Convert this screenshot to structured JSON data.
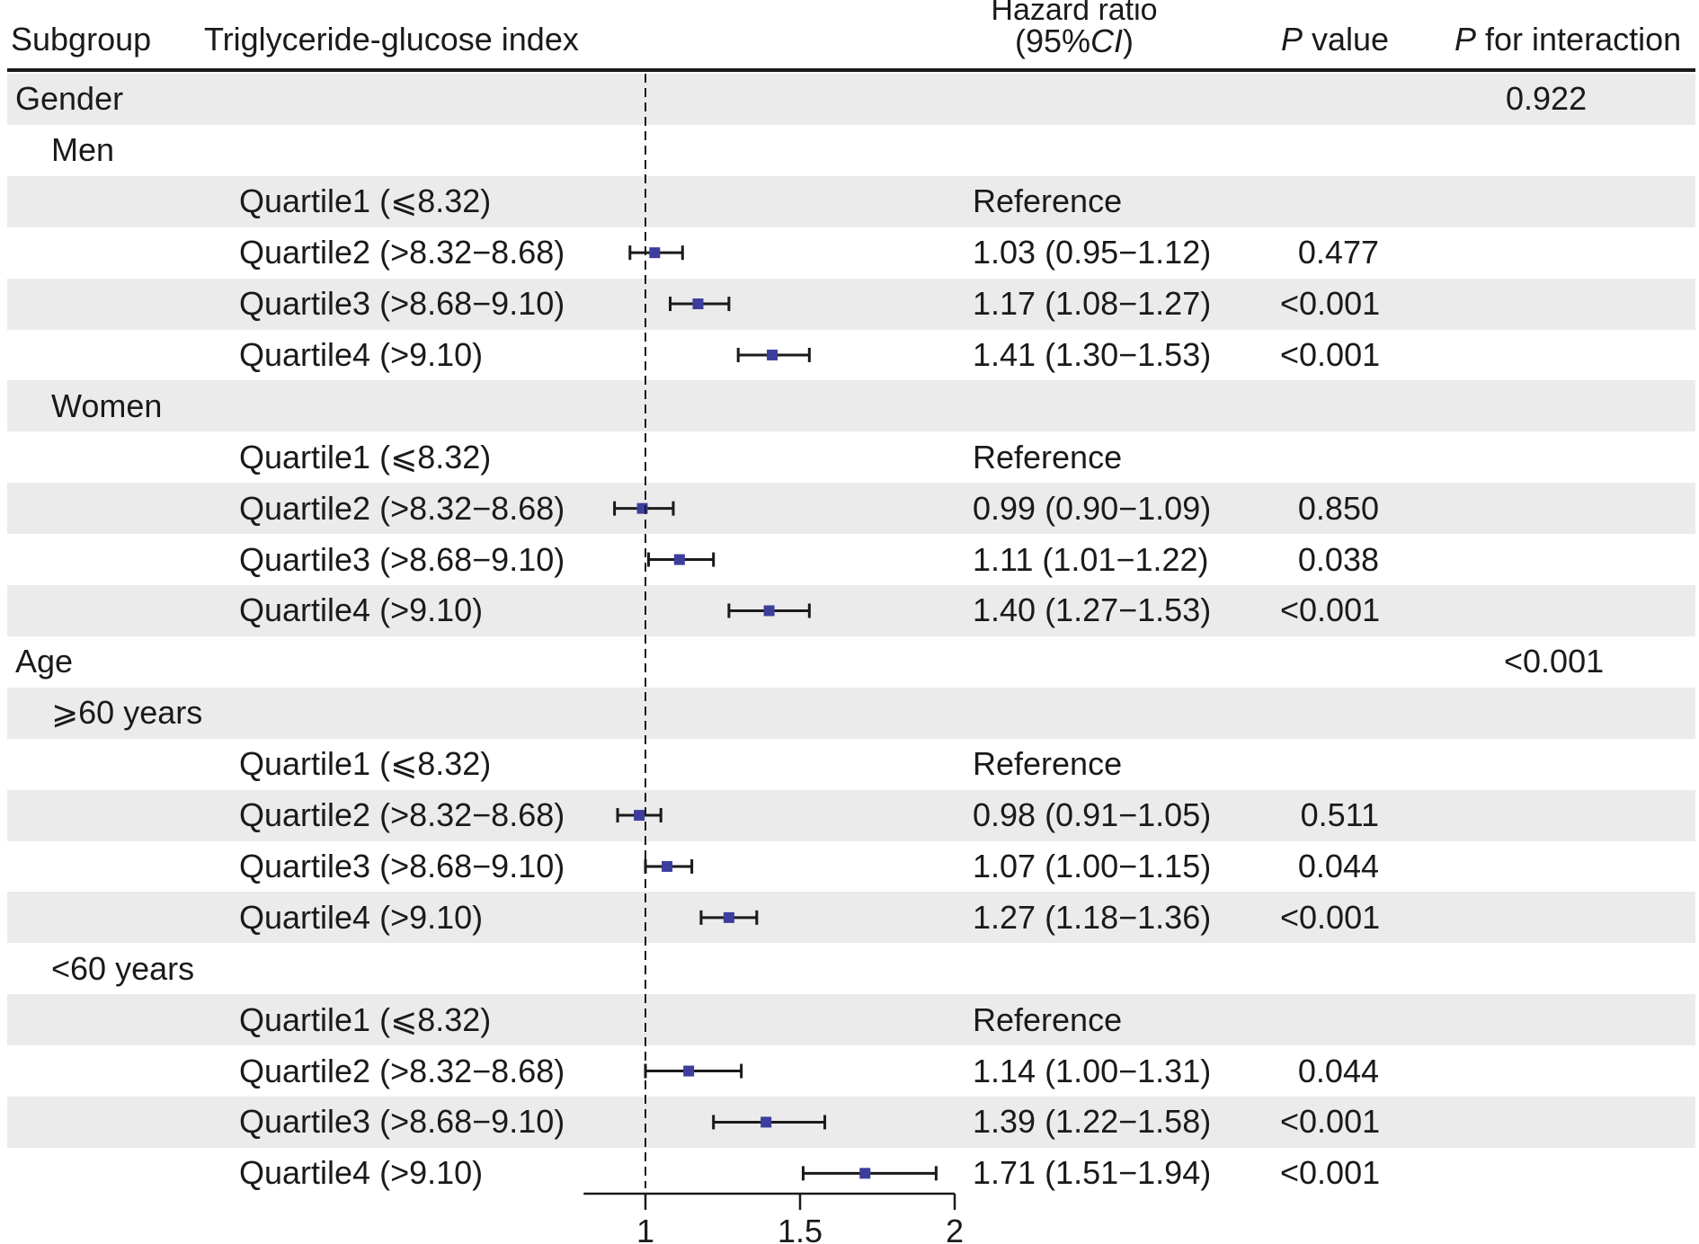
{
  "header": {
    "subgroup": "Subgroup",
    "tyg": "Triglyceride-glucose index",
    "hr_line1": "Hazard ratio",
    "hr_line2_pre": "(95%",
    "hr_line2_ci": "CI",
    "hr_line2_post": ")",
    "p_italic": "P",
    "p_rest": " value",
    "pint_italic": "P",
    "pint_rest": " for interaction"
  },
  "colors": {
    "marker": "#3d3d9e",
    "line": "#1a1a1a",
    "band": "#ebebeb"
  },
  "chart_data": {
    "type": "forest",
    "title": "",
    "reference_value": 1,
    "xlim": [
      0.8,
      2.0
    ],
    "xticks": [
      1,
      1.5,
      2
    ],
    "xtick_labels": [
      "1",
      "1.5",
      "2"
    ],
    "rows": [
      {
        "kind": "group",
        "label": "Gender",
        "pint": "0.922"
      },
      {
        "kind": "subgroup",
        "label": "Men"
      },
      {
        "kind": "item",
        "label": "Quartile1 (⩽8.32)",
        "hr_text": "Reference",
        "p": ""
      },
      {
        "kind": "item",
        "label": "Quartile2 (>8.32−8.68)",
        "hr": 1.03,
        "lo": 0.95,
        "hi": 1.12,
        "hr_text": "1.03 (0.95−1.12)",
        "p": "0.477"
      },
      {
        "kind": "item",
        "label": "Quartile3 (>8.68−9.10)",
        "hr": 1.17,
        "lo": 1.08,
        "hi": 1.27,
        "hr_text": "1.17 (1.08−1.27)",
        "p": "<0.001"
      },
      {
        "kind": "item",
        "label": "Quartile4 (>9.10)",
        "hr": 1.41,
        "lo": 1.3,
        "hi": 1.53,
        "hr_text": "1.41 (1.30−1.53)",
        "p": "<0.001"
      },
      {
        "kind": "subgroup",
        "label": "Women"
      },
      {
        "kind": "item",
        "label": "Quartile1 (⩽8.32)",
        "hr_text": "Reference",
        "p": ""
      },
      {
        "kind": "item",
        "label": "Quartile2 (>8.32−8.68)",
        "hr": 0.99,
        "lo": 0.9,
        "hi": 1.09,
        "hr_text": "0.99 (0.90−1.09)",
        "p": "0.850"
      },
      {
        "kind": "item",
        "label": "Quartile3 (>8.68−9.10)",
        "hr": 1.11,
        "lo": 1.01,
        "hi": 1.22,
        "hr_text": "1.11 (1.01−1.22)",
        "p": "0.038"
      },
      {
        "kind": "item",
        "label": "Quartile4 (>9.10)",
        "hr": 1.4,
        "lo": 1.27,
        "hi": 1.53,
        "hr_text": "1.40 (1.27−1.53)",
        "p": "<0.001"
      },
      {
        "kind": "group",
        "label": "Age",
        "pint": "<0.001"
      },
      {
        "kind": "subgroup",
        "label": "⩾60 years"
      },
      {
        "kind": "item",
        "label": "Quartile1 (⩽8.32)",
        "hr_text": "Reference",
        "p": ""
      },
      {
        "kind": "item",
        "label": "Quartile2 (>8.32−8.68)",
        "hr": 0.98,
        "lo": 0.91,
        "hi": 1.05,
        "hr_text": "0.98 (0.91−1.05)",
        "p": "0.511"
      },
      {
        "kind": "item",
        "label": "Quartile3 (>8.68−9.10)",
        "hr": 1.07,
        "lo": 1.0,
        "hi": 1.15,
        "hr_text": "1.07 (1.00−1.15)",
        "p": "0.044"
      },
      {
        "kind": "item",
        "label": "Quartile4 (>9.10)",
        "hr": 1.27,
        "lo": 1.18,
        "hi": 1.36,
        "hr_text": "1.27 (1.18−1.36)",
        "p": "<0.001"
      },
      {
        "kind": "subgroup",
        "label": "<60 years"
      },
      {
        "kind": "item",
        "label": "Quartile1 (⩽8.32)",
        "hr_text": "Reference",
        "p": ""
      },
      {
        "kind": "item",
        "label": "Quartile2 (>8.32−8.68)",
        "hr": 1.14,
        "lo": 1.0,
        "hi": 1.31,
        "hr_text": "1.14 (1.00−1.31)",
        "p": "0.044"
      },
      {
        "kind": "item",
        "label": "Quartile3 (>8.68−9.10)",
        "hr": 1.39,
        "lo": 1.22,
        "hi": 1.58,
        "hr_text": "1.39 (1.22−1.58)",
        "p": "<0.001"
      },
      {
        "kind": "item",
        "label": "Quartile4 (>9.10)",
        "hr": 1.71,
        "lo": 1.51,
        "hi": 1.94,
        "hr_text": "1.71 (1.51−1.94)",
        "p": "<0.001"
      }
    ]
  }
}
